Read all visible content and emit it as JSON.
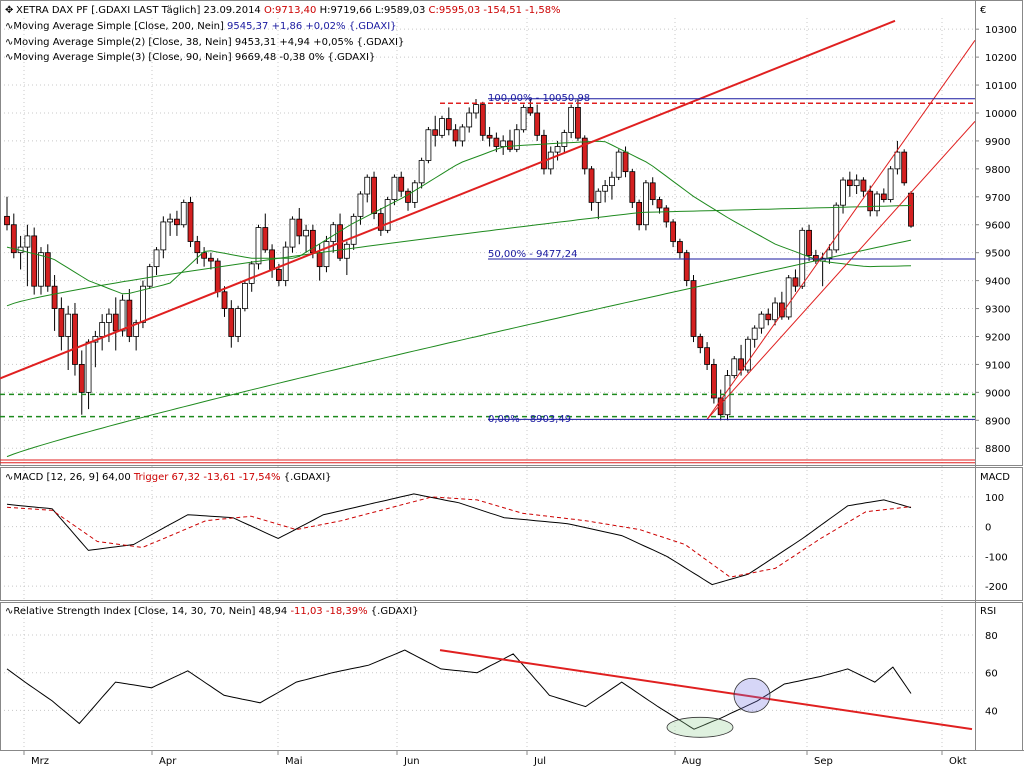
{
  "header": {
    "title": "XETRA DAX PF [.GDAXI LAST Täglich] 23.09.2014",
    "ohlc_o": "O:9713,40",
    "ohlc_h": "H:9719,66",
    "ohlc_l": "L:9589,03",
    "ohlc_c": "C:9595,03 -154,51 -1,58%",
    "ma1_name": "Moving Average Simple [Close, 200, Nein]",
    "ma1_val": "9545,37 +1,86 +0,02% {.GDAXI}",
    "ma2_name": "Moving Average Simple(2) [Close, 38, Nein]",
    "ma2_val": "9453,31 +4,94 +0,05% {.GDAXI}",
    "ma3_name": "Moving Average Simple(3) [Close, 90, Nein]",
    "ma3_val": "9669,48 -0,38 0% {.GDAXI}",
    "macd_name": "MACD [12, 26, 9] 64,00",
    "macd_trig": "Trigger 67,32 -13,61 -17,54%",
    "macd_sym": "{.GDAXI}",
    "macd_label": "MACD",
    "rsi_name": "Relative Strength Index [Close, 14, 30, 70, Nein] 48,94",
    "rsi_chg": "-11,03 -18,39%",
    "rsi_sym": "{.GDAXI}",
    "rsi_label": "RSI",
    "fib_100": "100,00% - 10050,98",
    "fib_50": "50,00% - 9477,24",
    "fib_0": "0,00% - 8903,49",
    "euro_icon": "€"
  },
  "colors": {
    "up": "#ffffff",
    "down": "#d42020",
    "wick": "#000000",
    "ma": "#1e8a1e",
    "trend": "#e02020",
    "fib": "#1a1aa0",
    "hline": "#1e8a1e",
    "grid": "#c8c8c8"
  },
  "chart_data": [
    {
      "type": "candlestick",
      "title": "XETRA DAX PF [.GDAXI LAST Täglich]",
      "x_labels": [
        "Mrz",
        "Apr",
        "Mai",
        "Jun",
        "Jul",
        "Aug",
        "Sep",
        "Okt"
      ],
      "yticks": [
        8800,
        8900,
        9000,
        9100,
        9200,
        9300,
        9400,
        9500,
        9600,
        9700,
        9800,
        9900,
        10000,
        10100,
        10200,
        10300
      ],
      "ylim": [
        8740,
        10340
      ],
      "candles": [
        [
          9630,
          9700,
          9580,
          9600
        ],
        [
          9600,
          9640,
          9480,
          9500
        ],
        [
          9500,
          9560,
          9440,
          9520
        ],
        [
          9520,
          9600,
          9380,
          9560
        ],
        [
          9560,
          9590,
          9350,
          9380
        ],
        [
          9380,
          9520,
          9350,
          9500
        ],
        [
          9500,
          9530,
          9360,
          9380
        ],
        [
          9380,
          9420,
          9220,
          9300
        ],
        [
          9300,
          9340,
          9150,
          9200
        ],
        [
          9200,
          9310,
          9080,
          9280
        ],
        [
          9280,
          9320,
          9060,
          9100
        ],
        [
          9100,
          9150,
          8920,
          9000
        ],
        [
          9000,
          9190,
          8940,
          9180
        ],
        [
          9180,
          9220,
          9090,
          9200
        ],
        [
          9200,
          9280,
          9150,
          9250
        ],
        [
          9250,
          9300,
          9180,
          9280
        ],
        [
          9280,
          9340,
          9150,
          9220
        ],
        [
          9220,
          9350,
          9200,
          9330
        ],
        [
          9330,
          9370,
          9180,
          9200
        ],
        [
          9200,
          9260,
          9150,
          9250
        ],
        [
          9250,
          9400,
          9230,
          9380
        ],
        [
          9380,
          9460,
          9370,
          9450
        ],
        [
          9450,
          9520,
          9420,
          9510
        ],
        [
          9510,
          9630,
          9480,
          9610
        ],
        [
          9610,
          9640,
          9560,
          9620
        ],
        [
          9620,
          9650,
          9560,
          9600
        ],
        [
          9600,
          9690,
          9590,
          9680
        ],
        [
          9680,
          9700,
          9520,
          9540
        ],
        [
          9540,
          9560,
          9460,
          9500
        ],
        [
          9500,
          9520,
          9450,
          9480
        ],
        [
          9480,
          9500,
          9440,
          9470
        ],
        [
          9470,
          9480,
          9340,
          9360
        ],
        [
          9360,
          9380,
          9270,
          9300
        ],
        [
          9300,
          9330,
          9160,
          9200
        ],
        [
          9200,
          9310,
          9180,
          9300
        ],
        [
          9300,
          9400,
          9290,
          9390
        ],
        [
          9390,
          9470,
          9360,
          9460
        ],
        [
          9460,
          9600,
          9440,
          9590
        ],
        [
          9590,
          9640,
          9500,
          9510
        ],
        [
          9510,
          9530,
          9410,
          9440
        ],
        [
          9440,
          9460,
          9380,
          9400
        ],
        [
          9400,
          9540,
          9380,
          9520
        ],
        [
          9520,
          9630,
          9500,
          9620
        ],
        [
          9620,
          9660,
          9530,
          9560
        ],
        [
          9560,
          9600,
          9500,
          9580
        ],
        [
          9580,
          9600,
          9480,
          9500
        ],
        [
          9500,
          9530,
          9400,
          9450
        ],
        [
          9450,
          9560,
          9430,
          9540
        ],
        [
          9540,
          9610,
          9500,
          9600
        ],
        [
          9600,
          9640,
          9470,
          9480
        ],
        [
          9480,
          9540,
          9420,
          9530
        ],
        [
          9530,
          9640,
          9510,
          9630
        ],
        [
          9630,
          9720,
          9600,
          9710
        ],
        [
          9710,
          9780,
          9680,
          9770
        ],
        [
          9770,
          9790,
          9620,
          9640
        ],
        [
          9640,
          9660,
          9560,
          9580
        ],
        [
          9580,
          9700,
          9570,
          9690
        ],
        [
          9690,
          9780,
          9670,
          9770
        ],
        [
          9770,
          9790,
          9700,
          9720
        ],
        [
          9720,
          9730,
          9650,
          9680
        ],
        [
          9680,
          9760,
          9660,
          9750
        ],
        [
          9750,
          9840,
          9730,
          9830
        ],
        [
          9830,
          9950,
          9820,
          9940
        ],
        [
          9940,
          9990,
          9880,
          9920
        ],
        [
          9920,
          9990,
          9910,
          9980
        ],
        [
          9980,
          10020,
          9920,
          9940
        ],
        [
          9940,
          9960,
          9880,
          9900
        ],
        [
          9900,
          9960,
          9880,
          9950
        ],
        [
          9950,
          10020,
          9930,
          10000
        ],
        [
          10000,
          10050,
          9980,
          10030
        ],
        [
          10030,
          10040,
          9900,
          9920
        ],
        [
          9920,
          9950,
          9880,
          9910
        ],
        [
          9910,
          9930,
          9860,
          9880
        ],
        [
          9880,
          9920,
          9850,
          9900
        ],
        [
          9900,
          9940,
          9860,
          9870
        ],
        [
          9870,
          9960,
          9860,
          9940
        ],
        [
          9940,
          10030,
          9930,
          10020
        ],
        [
          10020,
          10050,
          9990,
          10000
        ],
        [
          10000,
          10030,
          9900,
          9920
        ],
        [
          9920,
          9940,
          9780,
          9800
        ],
        [
          9800,
          9880,
          9780,
          9860
        ],
        [
          9860,
          9900,
          9830,
          9880
        ],
        [
          9880,
          9940,
          9860,
          9930
        ],
        [
          9930,
          10030,
          9910,
          10020
        ],
        [
          10020,
          10050,
          9900,
          9910
        ],
        [
          9910,
          9920,
          9780,
          9800
        ],
        [
          9800,
          9810,
          9650,
          9680
        ],
        [
          9680,
          9730,
          9620,
          9720
        ],
        [
          9720,
          9760,
          9680,
          9740
        ],
        [
          9740,
          9790,
          9690,
          9770
        ],
        [
          9770,
          9870,
          9760,
          9860
        ],
        [
          9860,
          9880,
          9770,
          9790
        ],
        [
          9790,
          9800,
          9660,
          9680
        ],
        [
          9680,
          9690,
          9580,
          9600
        ],
        [
          9600,
          9760,
          9580,
          9750
        ],
        [
          9750,
          9770,
          9670,
          9690
        ],
        [
          9690,
          9700,
          9640,
          9660
        ],
        [
          9660,
          9670,
          9590,
          9610
        ],
        [
          9610,
          9620,
          9520,
          9540
        ],
        [
          9540,
          9550,
          9480,
          9500
        ],
        [
          9500,
          9510,
          9380,
          9400
        ],
        [
          9400,
          9420,
          9180,
          9200
        ],
        [
          9200,
          9210,
          9140,
          9160
        ],
        [
          9160,
          9180,
          9080,
          9100
        ],
        [
          9100,
          9120,
          8960,
          8980
        ],
        [
          8980,
          9010,
          8900,
          8920
        ],
        [
          8920,
          9080,
          8900,
          9060
        ],
        [
          9060,
          9130,
          9050,
          9120
        ],
        [
          9120,
          9170,
          9060,
          9080
        ],
        [
          9080,
          9200,
          9070,
          9190
        ],
        [
          9190,
          9240,
          9160,
          9230
        ],
        [
          9230,
          9290,
          9210,
          9280
        ],
        [
          9280,
          9300,
          9240,
          9260
        ],
        [
          9260,
          9340,
          9240,
          9320
        ],
        [
          9320,
          9360,
          9260,
          9270
        ],
        [
          9270,
          9420,
          9260,
          9410
        ],
        [
          9410,
          9440,
          9360,
          9380
        ],
        [
          9380,
          9590,
          9370,
          9580
        ],
        [
          9580,
          9600,
          9470,
          9490
        ],
        [
          9490,
          9510,
          9460,
          9470
        ],
        [
          9470,
          9500,
          9380,
          9480
        ],
        [
          9480,
          9530,
          9460,
          9510
        ],
        [
          9510,
          9680,
          9500,
          9670
        ],
        [
          9670,
          9770,
          9640,
          9760
        ],
        [
          9760,
          9790,
          9700,
          9740
        ],
        [
          9740,
          9780,
          9710,
          9760
        ],
        [
          9760,
          9770,
          9700,
          9720
        ],
        [
          9720,
          9740,
          9630,
          9650
        ],
        [
          9650,
          9720,
          9630,
          9710
        ],
        [
          9710,
          9730,
          9680,
          9690
        ],
        [
          9690,
          9810,
          9680,
          9800
        ],
        [
          9800,
          9900,
          9780,
          9860
        ],
        [
          9860,
          9870,
          9740,
          9750
        ],
        [
          9713,
          9720,
          9589,
          9595
        ]
      ],
      "ma200": {
        "name": "Moving Average Simple [Close, 200, Nein]",
        "values": [
          8770,
          9545
        ]
      },
      "ma38": {
        "name": "Moving Average Simple(2) [Close, 38, Nein]",
        "values": [
          9520,
          9453
        ]
      },
      "ma90": {
        "name": "Moving Average Simple(3) [Close, 90, Nein]",
        "values": [
          9310,
          9669
        ]
      },
      "fib_levels": [
        {
          "label": "100,00% - 10050,98",
          "value": 10050.98
        },
        {
          "label": "50,00% - 9477,24",
          "value": 9477.24
        },
        {
          "label": "0,00% - 8903,49",
          "value": 8903.49
        }
      ]
    },
    {
      "type": "line",
      "title": "MACD [12, 26, 9]",
      "yticks": [
        100,
        0,
        -100,
        -200
      ],
      "ylim": [
        -240,
        140
      ],
      "series": [
        {
          "name": "MACD",
          "last": 64.0
        },
        {
          "name": "Trigger",
          "last": 67.32
        }
      ]
    },
    {
      "type": "line",
      "title": "Relative Strength Index [Close, 14, 30, 70, Nein]",
      "yticks": [
        80,
        60,
        40
      ],
      "ylim": [
        20,
        88
      ],
      "series": [
        {
          "name": "RSI",
          "last": 48.94
        }
      ]
    }
  ]
}
